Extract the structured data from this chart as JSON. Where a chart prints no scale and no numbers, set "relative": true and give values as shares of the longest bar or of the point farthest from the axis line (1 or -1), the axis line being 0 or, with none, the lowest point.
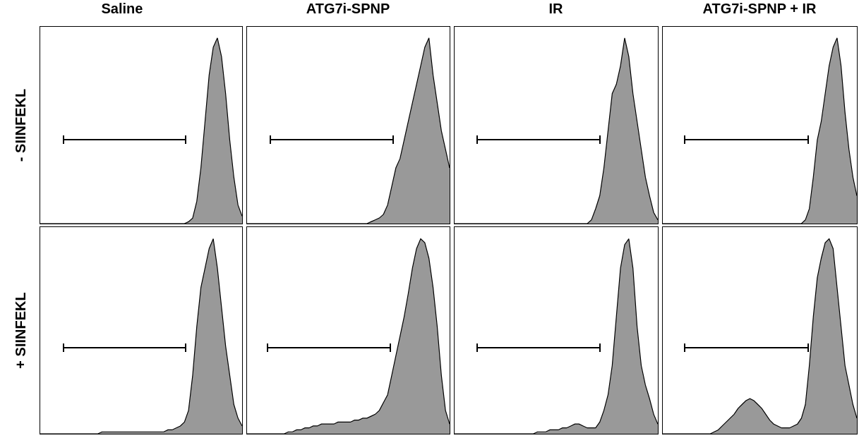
{
  "chart_data": [
    {
      "type": "area",
      "title": "Saline",
      "ylabel": "- SIINFEKL",
      "relative": true,
      "color": "#999999",
      "categories": [
        null,
        null,
        null,
        null,
        null,
        null,
        null,
        null,
        null,
        null,
        null,
        null,
        null,
        null,
        null,
        null,
        null,
        null,
        null,
        null,
        null,
        null,
        null,
        null,
        null,
        null,
        null,
        null,
        null,
        null,
        null,
        null,
        null,
        null,
        null,
        null,
        null,
        null,
        null,
        null,
        null,
        null,
        null,
        null,
        null,
        null,
        null,
        null,
        null,
        null
      ],
      "values": [
        0,
        0,
        0,
        0,
        0,
        0,
        0,
        0,
        0,
        0,
        0,
        0,
        0,
        0,
        0,
        0,
        0,
        0,
        0,
        0,
        0,
        0,
        0,
        0,
        0,
        0,
        0,
        0,
        0,
        0,
        0,
        0,
        0,
        0,
        0,
        0,
        0.01,
        0.03,
        0.12,
        0.3,
        0.55,
        0.8,
        0.95,
        1,
        0.9,
        0.7,
        0.45,
        0.25,
        0.1,
        0.04
      ]
    },
    {
      "type": "area",
      "title": "ATG7i-SPNP",
      "relative": true,
      "color": "#999999",
      "categories": [
        null,
        null,
        null,
        null,
        null,
        null,
        null,
        null,
        null,
        null,
        null,
        null,
        null,
        null,
        null,
        null,
        null,
        null,
        null,
        null,
        null,
        null,
        null,
        null,
        null,
        null,
        null,
        null,
        null,
        null,
        null,
        null,
        null,
        null,
        null,
        null,
        null,
        null,
        null,
        null,
        null,
        null,
        null,
        null,
        null,
        null,
        null,
        null,
        null,
        null
      ],
      "values": [
        0,
        0,
        0,
        0,
        0,
        0,
        0,
        0,
        0,
        0,
        0,
        0,
        0,
        0,
        0,
        0,
        0,
        0,
        0,
        0,
        0,
        0,
        0,
        0,
        0,
        0,
        0,
        0,
        0,
        0,
        0.01,
        0.02,
        0.03,
        0.05,
        0.1,
        0.2,
        0.3,
        0.35,
        0.45,
        0.55,
        0.65,
        0.75,
        0.85,
        0.95,
        1,
        0.8,
        0.65,
        0.5,
        0.4,
        0.3
      ]
    },
    {
      "type": "area",
      "title": "IR",
      "relative": true,
      "color": "#999999",
      "categories": [
        null,
        null,
        null,
        null,
        null,
        null,
        null,
        null,
        null,
        null,
        null,
        null,
        null,
        null,
        null,
        null,
        null,
        null,
        null,
        null,
        null,
        null,
        null,
        null,
        null,
        null,
        null,
        null,
        null,
        null,
        null,
        null,
        null,
        null,
        null,
        null,
        null,
        null,
        null,
        null,
        null,
        null,
        null,
        null,
        null,
        null,
        null,
        null,
        null,
        null
      ],
      "values": [
        0,
        0,
        0,
        0,
        0,
        0,
        0,
        0,
        0,
        0,
        0,
        0,
        0,
        0,
        0,
        0,
        0,
        0,
        0,
        0,
        0,
        0,
        0,
        0,
        0,
        0,
        0,
        0,
        0,
        0,
        0,
        0,
        0,
        0.02,
        0.08,
        0.15,
        0.3,
        0.5,
        0.7,
        0.75,
        0.85,
        1,
        0.9,
        0.7,
        0.55,
        0.4,
        0.25,
        0.15,
        0.06,
        0.02
      ]
    },
    {
      "type": "area",
      "title": "ATG7i-SPNP + IR",
      "relative": true,
      "color": "#999999",
      "categories": [
        null,
        null,
        null,
        null,
        null,
        null,
        null,
        null,
        null,
        null,
        null,
        null,
        null,
        null,
        null,
        null,
        null,
        null,
        null,
        null,
        null,
        null,
        null,
        null,
        null,
        null,
        null,
        null,
        null,
        null,
        null,
        null,
        null,
        null,
        null,
        null,
        null,
        null,
        null,
        null,
        null,
        null,
        null,
        null,
        null,
        null,
        null,
        null,
        null,
        null
      ],
      "values": [
        0,
        0,
        0,
        0,
        0,
        0,
        0,
        0,
        0,
        0,
        0,
        0,
        0,
        0,
        0,
        0,
        0,
        0,
        0,
        0,
        0,
        0,
        0,
        0,
        0,
        0,
        0,
        0,
        0,
        0,
        0,
        0,
        0,
        0,
        0,
        0,
        0.02,
        0.08,
        0.25,
        0.45,
        0.55,
        0.7,
        0.85,
        0.95,
        1,
        0.85,
        0.6,
        0.4,
        0.25,
        0.15
      ]
    },
    {
      "type": "area",
      "ylabel": "+ SIINFEKL",
      "relative": true,
      "color": "#999999",
      "categories": [
        null,
        null,
        null,
        null,
        null,
        null,
        null,
        null,
        null,
        null,
        null,
        null,
        null,
        null,
        null,
        null,
        null,
        null,
        null,
        null,
        null,
        null,
        null,
        null,
        null,
        null,
        null,
        null,
        null,
        null,
        null,
        null,
        null,
        null,
        null,
        null,
        null,
        null,
        null,
        null,
        null,
        null,
        null,
        null,
        null,
        null,
        null,
        null,
        null,
        null
      ],
      "values": [
        0,
        0,
        0,
        0,
        0,
        0,
        0,
        0,
        0,
        0,
        0,
        0,
        0,
        0,
        0,
        0.01,
        0.01,
        0.01,
        0.01,
        0.01,
        0.01,
        0.01,
        0.01,
        0.01,
        0.01,
        0.01,
        0.01,
        0.01,
        0.01,
        0.01,
        0.01,
        0.02,
        0.02,
        0.03,
        0.04,
        0.06,
        0.12,
        0.3,
        0.55,
        0.75,
        0.85,
        0.95,
        1,
        0.85,
        0.65,
        0.45,
        0.3,
        0.15,
        0.08,
        0.04
      ]
    },
    {
      "type": "area",
      "relative": true,
      "color": "#999999",
      "categories": [
        null,
        null,
        null,
        null,
        null,
        null,
        null,
        null,
        null,
        null,
        null,
        null,
        null,
        null,
        null,
        null,
        null,
        null,
        null,
        null,
        null,
        null,
        null,
        null,
        null,
        null,
        null,
        null,
        null,
        null,
        null,
        null,
        null,
        null,
        null,
        null,
        null,
        null,
        null,
        null,
        null,
        null,
        null,
        null,
        null,
        null,
        null,
        null,
        null,
        null
      ],
      "values": [
        0,
        0,
        0,
        0,
        0,
        0,
        0,
        0,
        0,
        0,
        0.01,
        0.01,
        0.02,
        0.02,
        0.03,
        0.03,
        0.04,
        0.04,
        0.05,
        0.05,
        0.05,
        0.05,
        0.06,
        0.06,
        0.06,
        0.06,
        0.07,
        0.07,
        0.08,
        0.08,
        0.09,
        0.1,
        0.12,
        0.16,
        0.2,
        0.3,
        0.4,
        0.5,
        0.6,
        0.72,
        0.85,
        0.95,
        1,
        0.98,
        0.9,
        0.75,
        0.55,
        0.3,
        0.12,
        0.05
      ]
    },
    {
      "type": "area",
      "relative": true,
      "color": "#999999",
      "categories": [
        null,
        null,
        null,
        null,
        null,
        null,
        null,
        null,
        null,
        null,
        null,
        null,
        null,
        null,
        null,
        null,
        null,
        null,
        null,
        null,
        null,
        null,
        null,
        null,
        null,
        null,
        null,
        null,
        null,
        null,
        null,
        null,
        null,
        null,
        null,
        null,
        null,
        null,
        null,
        null,
        null,
        null,
        null,
        null,
        null,
        null,
        null,
        null,
        null,
        null
      ],
      "values": [
        0,
        0,
        0,
        0,
        0,
        0,
        0,
        0,
        0,
        0,
        0,
        0,
        0,
        0,
        0,
        0,
        0,
        0,
        0,
        0,
        0.01,
        0.01,
        0.01,
        0.02,
        0.02,
        0.02,
        0.03,
        0.03,
        0.04,
        0.05,
        0.05,
        0.04,
        0.03,
        0.03,
        0.03,
        0.06,
        0.12,
        0.2,
        0.35,
        0.6,
        0.85,
        0.97,
        1,
        0.85,
        0.55,
        0.35,
        0.25,
        0.18,
        0.1,
        0.05
      ]
    },
    {
      "type": "area",
      "relative": true,
      "color": "#999999",
      "categories": [
        null,
        null,
        null,
        null,
        null,
        null,
        null,
        null,
        null,
        null,
        null,
        null,
        null,
        null,
        null,
        null,
        null,
        null,
        null,
        null,
        null,
        null,
        null,
        null,
        null,
        null,
        null,
        null,
        null,
        null,
        null,
        null,
        null,
        null,
        null,
        null,
        null,
        null,
        null,
        null,
        null,
        null,
        null,
        null,
        null,
        null,
        null,
        null,
        null,
        null
      ],
      "values": [
        0,
        0,
        0,
        0,
        0,
        0,
        0,
        0,
        0,
        0,
        0,
        0,
        0,
        0.01,
        0.02,
        0.04,
        0.06,
        0.08,
        0.1,
        0.13,
        0.15,
        0.17,
        0.18,
        0.17,
        0.15,
        0.13,
        0.1,
        0.07,
        0.05,
        0.04,
        0.03,
        0.03,
        0.03,
        0.04,
        0.05,
        0.08,
        0.15,
        0.35,
        0.6,
        0.8,
        0.9,
        0.98,
        1,
        0.95,
        0.75,
        0.55,
        0.35,
        0.25,
        0.15,
        0.08
      ]
    }
  ]
}
